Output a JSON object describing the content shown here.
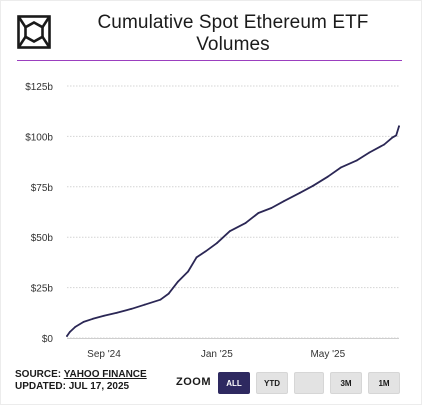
{
  "header": {
    "title_line1": "Cumulative Spot Ethereum ETF",
    "title_line2": "Volumes",
    "logo_icon": "cube-logo-icon"
  },
  "colors": {
    "line": "#2b2755",
    "accent_rule": "#9b3fbf",
    "active_button": "#2e2960",
    "grid": "#d4d4d4"
  },
  "chart_data": {
    "type": "line",
    "title": "Cumulative Spot Ethereum ETF Volumes",
    "xlabel": "",
    "ylabel": "",
    "x_ticks": [
      "Sep '24",
      "Jan '25",
      "May '25"
    ],
    "y_ticks": [
      "$0",
      "$25b",
      "$50b",
      "$75b",
      "$100b",
      "$125b"
    ],
    "ylim": [
      0,
      125
    ],
    "xlim": [
      "2024-07-23",
      "2025-07-17"
    ],
    "grid": "horizontal",
    "legend": "none",
    "series": [
      {
        "x": [
          "2024-07-23",
          "2024-07-26",
          "2024-08-01",
          "2024-08-10",
          "2024-08-20",
          "2024-09-01",
          "2024-09-15",
          "2024-10-01",
          "2024-10-15",
          "2024-11-01",
          "2024-11-10",
          "2024-11-20",
          "2024-12-01",
          "2024-12-10",
          "2024-12-20",
          "2025-01-01",
          "2025-01-15",
          "2025-02-01",
          "2025-02-15",
          "2025-03-01",
          "2025-03-15",
          "2025-04-01",
          "2025-04-15",
          "2025-05-01",
          "2025-05-15",
          "2025-06-01",
          "2025-06-15",
          "2025-07-01",
          "2025-07-10",
          "2025-07-14",
          "2025-07-17"
        ],
        "values": [
          1.0,
          3.0,
          5.5,
          8.0,
          9.5,
          11.0,
          12.5,
          14.5,
          16.5,
          19.0,
          22.0,
          28.0,
          33.0,
          40.0,
          43.0,
          47.0,
          53.0,
          57.0,
          62.0,
          64.5,
          68.0,
          72.0,
          75.5,
          80.0,
          84.5,
          88.0,
          92.0,
          96.0,
          99.5,
          100.5,
          105.0
        ]
      }
    ]
  },
  "footer": {
    "source_prefix": "SOURCE: ",
    "source_name": "YAHOO FINANCE",
    "updated": "UPDATED: JUL 17, 2025"
  },
  "zoom": {
    "label": "ZOOM",
    "buttons": [
      {
        "label": "ALL",
        "active": true
      },
      {
        "label": "YTD",
        "active": false
      },
      {
        "label": "",
        "active": false
      },
      {
        "label": "3M",
        "active": false
      },
      {
        "label": "1M",
        "active": false
      }
    ]
  }
}
